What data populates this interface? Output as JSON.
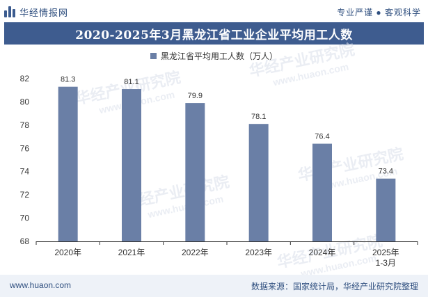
{
  "header": {
    "brand_name": "华经情报网",
    "tagline": "专业严谨 ● 客观科学"
  },
  "footer": {
    "website": "www.huaon.com",
    "source": "数据来源：国家统计局，华经产业研究院整理"
  },
  "watermark": {
    "text": "华经产业研究院",
    "url": "www.huaon.com"
  },
  "colors": {
    "bar": "#6a7fa6",
    "title_bar": "#3e5c8f",
    "brand": "#2f4f7f"
  },
  "chart_data": {
    "type": "bar",
    "title": "2020-2025年3月黑龙江省工业企业平均用工人数",
    "legend": "黑龙江省平均用工人数（万人）",
    "categories": [
      "2020年",
      "2021年",
      "2022年",
      "2023年",
      "2024年",
      "2025年 1-3月"
    ],
    "category_lines": [
      [
        "2020年"
      ],
      [
        "2021年"
      ],
      [
        "2022年"
      ],
      [
        "2023年"
      ],
      [
        "2024年"
      ],
      [
        "2025年",
        "1-3月"
      ]
    ],
    "series": [
      {
        "name": "黑龙江省平均用工人数（万人）",
        "values": [
          81.3,
          81.1,
          79.9,
          78.1,
          76.4,
          73.4
        ]
      }
    ],
    "ylim": [
      68,
      82
    ],
    "yticks": [
      68,
      70,
      72,
      74,
      76,
      78,
      80,
      82
    ],
    "grid": false
  }
}
